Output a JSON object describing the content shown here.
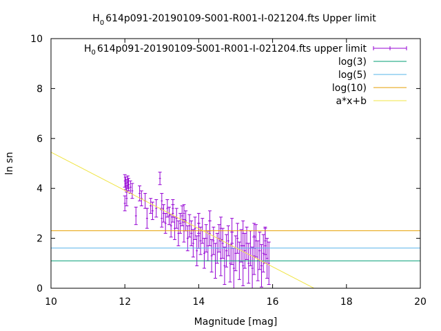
{
  "chart_data": {
    "type": "scatter",
    "title_prefix": "H",
    "title_sub": "0",
    "title_rest": "614p091-20190109-S001-R001-I-021204.fts Upper limit",
    "xlabel": "Magnitude [mag]",
    "ylabel": "ln sn",
    "xlim": [
      10,
      20
    ],
    "ylim": [
      0,
      10
    ],
    "x_ticks": [
      "10",
      "12",
      "14",
      "16",
      "18",
      "20"
    ],
    "y_ticks": [
      "0",
      "2",
      "4",
      "6",
      "8",
      "10"
    ],
    "grid": false,
    "legend_position": "top-right",
    "series": [
      {
        "name_prefix": "H",
        "name_sub": "0",
        "name_rest": "614p091-20190109-S001-R001-I-021204.fts upper limit",
        "style": "errorbars",
        "color": "#9400d3",
        "points": [
          [
            12.0,
            4.3,
            0.25
          ],
          [
            12.02,
            4.2,
            0.25
          ],
          [
            12.05,
            4.1,
            0.25
          ],
          [
            12.08,
            4.25,
            0.25
          ],
          [
            12.1,
            4.15,
            0.25
          ],
          [
            12.0,
            3.4,
            0.3
          ],
          [
            12.05,
            3.6,
            0.3
          ],
          [
            12.15,
            4.05,
            0.25
          ],
          [
            12.2,
            3.9,
            0.3
          ],
          [
            12.3,
            2.9,
            0.35
          ],
          [
            12.4,
            3.8,
            0.3
          ],
          [
            12.45,
            3.6,
            0.3
          ],
          [
            12.55,
            3.5,
            0.3
          ],
          [
            12.6,
            2.8,
            0.4
          ],
          [
            12.7,
            3.3,
            0.3
          ],
          [
            12.75,
            3.1,
            0.35
          ],
          [
            12.85,
            3.2,
            0.35
          ],
          [
            12.95,
            4.4,
            0.25
          ],
          [
            13.0,
            2.8,
            0.35
          ],
          [
            13.05,
            3.0,
            0.35
          ],
          [
            13.1,
            2.6,
            0.4
          ],
          [
            13.15,
            3.2,
            0.35
          ],
          [
            13.2,
            2.9,
            0.35
          ],
          [
            13.25,
            2.5,
            0.45
          ],
          [
            13.3,
            3.0,
            0.35
          ],
          [
            13.35,
            2.4,
            0.45
          ],
          [
            13.4,
            2.8,
            0.4
          ],
          [
            13.45,
            2.2,
            0.5
          ],
          [
            13.5,
            2.6,
            0.4
          ],
          [
            13.55,
            2.9,
            0.4
          ],
          [
            13.6,
            2.3,
            0.45
          ],
          [
            13.65,
            2.7,
            0.4
          ],
          [
            13.7,
            2.0,
            0.5
          ],
          [
            13.75,
            2.5,
            0.45
          ],
          [
            13.8,
            2.2,
            0.5
          ],
          [
            13.85,
            1.8,
            0.55
          ],
          [
            13.9,
            2.4,
            0.45
          ],
          [
            13.95,
            1.5,
            0.6
          ],
          [
            14.0,
            2.1,
            0.5
          ],
          [
            14.05,
            1.9,
            0.55
          ],
          [
            14.1,
            2.3,
            0.5
          ],
          [
            14.15,
            1.4,
            0.6
          ],
          [
            14.2,
            2.0,
            0.55
          ],
          [
            14.25,
            1.7,
            0.6
          ],
          [
            14.3,
            2.2,
            0.5
          ],
          [
            14.35,
            1.3,
            0.65
          ],
          [
            14.4,
            1.9,
            0.55
          ],
          [
            14.45,
            1.1,
            0.7
          ],
          [
            14.5,
            1.6,
            0.6
          ],
          [
            14.55,
            2.0,
            0.55
          ],
          [
            14.6,
            1.2,
            0.7
          ],
          [
            14.65,
            1.8,
            0.6
          ],
          [
            14.7,
            0.9,
            0.75
          ],
          [
            14.75,
            1.5,
            0.65
          ],
          [
            14.8,
            1.9,
            0.6
          ],
          [
            14.85,
            1.0,
            0.75
          ],
          [
            14.9,
            1.6,
            0.65
          ],
          [
            14.95,
            0.8,
            0.8
          ],
          [
            15.0,
            1.4,
            0.7
          ],
          [
            15.05,
            2.0,
            0.6
          ],
          [
            15.1,
            1.1,
            0.75
          ],
          [
            15.15,
            1.7,
            0.65
          ],
          [
            15.2,
            0.9,
            0.8
          ],
          [
            15.25,
            1.5,
            0.7
          ],
          [
            15.3,
            1.8,
            0.65
          ],
          [
            15.35,
            1.0,
            0.8
          ],
          [
            15.4,
            1.6,
            0.7
          ],
          [
            15.45,
            0.8,
            0.85
          ],
          [
            15.5,
            1.3,
            0.75
          ],
          [
            15.55,
            1.9,
            0.65
          ],
          [
            15.6,
            1.1,
            0.8
          ],
          [
            15.65,
            1.5,
            0.75
          ],
          [
            15.7,
            0.9,
            0.85
          ],
          [
            15.75,
            1.4,
            0.75
          ],
          [
            15.8,
            1.7,
            0.7
          ],
          [
            15.85,
            1.2,
            0.8
          ],
          [
            15.9,
            1.0,
            0.85
          ],
          [
            13.0,
            3.5,
            0.3
          ],
          [
            13.3,
            3.2,
            0.35
          ],
          [
            13.6,
            3.0,
            0.35
          ],
          [
            14.0,
            2.6,
            0.4
          ],
          [
            14.3,
            2.7,
            0.4
          ],
          [
            14.6,
            2.4,
            0.45
          ],
          [
            14.9,
            2.3,
            0.5
          ],
          [
            15.2,
            2.2,
            0.5
          ],
          [
            15.5,
            2.1,
            0.5
          ],
          [
            15.8,
            1.9,
            0.55
          ]
        ]
      },
      {
        "name": "log(3)",
        "style": "hline",
        "color": "#009e73",
        "y": 1.0986
      },
      {
        "name": "log(5)",
        "style": "hline",
        "color": "#56b4e9",
        "y": 1.6094
      },
      {
        "name": "log(10)",
        "style": "hline",
        "color": "#e69f00",
        "y": 2.3026
      },
      {
        "name": "a*x+b",
        "style": "line",
        "color": "#f0e442",
        "slope": -0.765,
        "intercept": 13.1
      }
    ]
  }
}
